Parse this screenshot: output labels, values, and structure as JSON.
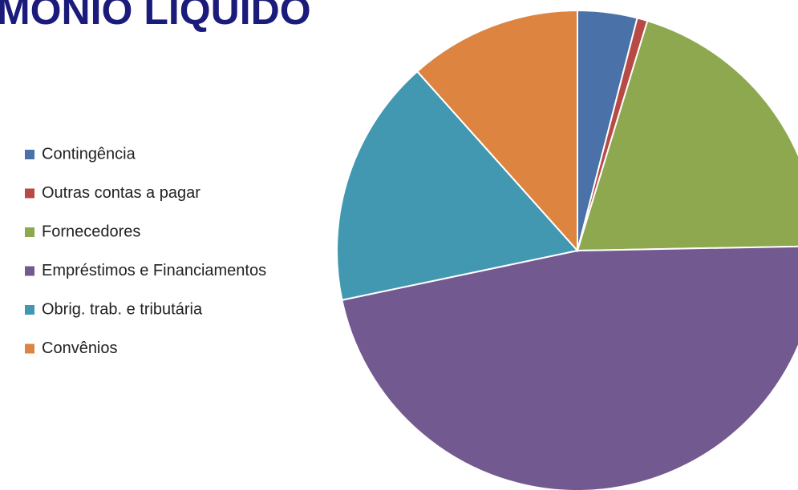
{
  "chart_data": {
    "type": "pie",
    "title": "MONIO LIQUIDO",
    "categories": [
      "Contingência",
      "Outras contas a pagar",
      "Fornecedores",
      "Empréstimos e Financiamentos",
      "Obrig. trab. e tributária",
      "Convênios"
    ],
    "values": [
      4,
      0.7,
      20,
      47,
      16.7,
      11.6
    ],
    "colors": [
      "#4a72a8",
      "#b84a45",
      "#8ea84f",
      "#72598f",
      "#4298b0",
      "#dd8540"
    ],
    "legend": "left"
  }
}
